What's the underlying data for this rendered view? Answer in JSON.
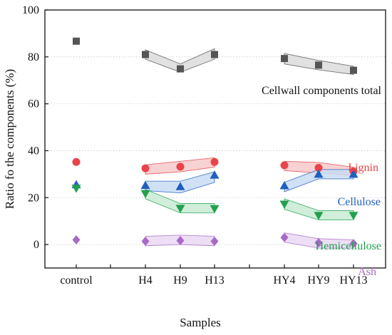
{
  "chart_data": {
    "type": "scatter",
    "xlabel": "Samples",
    "ylabel": "Ratio fo the components (%)",
    "ylim": [
      -10,
      100
    ],
    "y_ticks": [
      0,
      20,
      40,
      60,
      80,
      100
    ],
    "grid": "horizontal dashed",
    "categories": [
      "control",
      "H4",
      "H9",
      "H13",
      "HY4",
      "HY9",
      "HY13"
    ],
    "bands": [
      {
        "series": "Cellwall components total",
        "x": [
          "H4",
          "H9",
          "H13"
        ],
        "lower": [
          79,
          73.5,
          79
        ],
        "upper": [
          83,
          77,
          83.5
        ]
      },
      {
        "series": "Cellwall components total",
        "x": [
          "HY4",
          "HY9",
          "HY13"
        ],
        "lower": [
          77,
          74.5,
          72.5
        ],
        "upper": [
          81.5,
          78.5,
          76
        ]
      },
      {
        "series": "Lignin",
        "x": [
          "H4",
          "H9",
          "H13"
        ],
        "lower": [
          30,
          31,
          33
        ],
        "upper": [
          34,
          35.5,
          37
        ]
      },
      {
        "series": "Lignin",
        "x": [
          "HY4",
          "HY9",
          "HY13"
        ],
        "lower": [
          31.5,
          30.5,
          29.5
        ],
        "upper": [
          35.5,
          35,
          33
        ]
      },
      {
        "series": "Cellulose",
        "x": [
          "H4",
          "H9",
          "H13"
        ],
        "lower": [
          23,
          22,
          26.5
        ],
        "upper": [
          27,
          27,
          31
        ]
      },
      {
        "series": "Cellulose",
        "x": [
          "HY4",
          "HY9",
          "HY13"
        ],
        "lower": [
          22.5,
          28,
          28
        ],
        "upper": [
          26.5,
          32,
          32
        ]
      },
      {
        "series": "Hemicellulose",
        "x": [
          "H4",
          "H9",
          "H13"
        ],
        "lower": [
          19.5,
          13.5,
          13.5
        ],
        "upper": [
          23.5,
          17.5,
          17.5
        ]
      },
      {
        "series": "Hemicellulose",
        "x": [
          "HY4",
          "HY9",
          "HY13"
        ],
        "lower": [
          15,
          10.5,
          10.5
        ],
        "upper": [
          19.5,
          14.5,
          14.5
        ]
      },
      {
        "series": "Ash",
        "x": [
          "H4",
          "H9",
          "H13"
        ],
        "lower": [
          -0.5,
          0,
          -0.5
        ],
        "upper": [
          3.5,
          4,
          3.5
        ]
      },
      {
        "series": "Ash",
        "x": [
          "HY4",
          "HY9",
          "HY13"
        ],
        "lower": [
          1,
          -1.5,
          -1.5
        ],
        "upper": [
          5,
          2.5,
          2
        ]
      }
    ],
    "series": [
      {
        "name": "Cellwall components total",
        "marker": "square",
        "color": "#555555",
        "values": [
          86.7,
          81,
          74.9,
          81,
          79.3,
          76.5,
          74.3
        ]
      },
      {
        "name": "Lignin",
        "marker": "circle",
        "color": "#e8444a",
        "values": [
          35.2,
          32.5,
          33.2,
          35.2,
          33.8,
          32.7,
          31.2
        ]
      },
      {
        "name": "Cellulose",
        "marker": "triangle-up",
        "color": "#1f5fbf",
        "values": [
          25.5,
          25.2,
          24.7,
          29.6,
          25.1,
          30,
          30
        ]
      },
      {
        "name": "Hemicellulose",
        "marker": "triangle-down",
        "color": "#22a050",
        "values": [
          24,
          21.7,
          15.4,
          15.3,
          17.2,
          12.4,
          12.4
        ]
      },
      {
        "name": "Ash",
        "marker": "diamond",
        "color": "#a76ac8",
        "values": [
          2,
          1.4,
          1.7,
          1.4,
          3,
          0.8,
          0.4
        ]
      }
    ],
    "annotations": [
      {
        "text": "Cellwall components total",
        "color": "#111111"
      },
      {
        "text": "Lignin",
        "color": "#e8444a"
      },
      {
        "text": "Cellulose",
        "color": "#1f5fbf"
      },
      {
        "text": "Hemicellulose",
        "color": "#22a050"
      },
      {
        "text": "Ash",
        "color": "#a76ac8"
      }
    ]
  }
}
